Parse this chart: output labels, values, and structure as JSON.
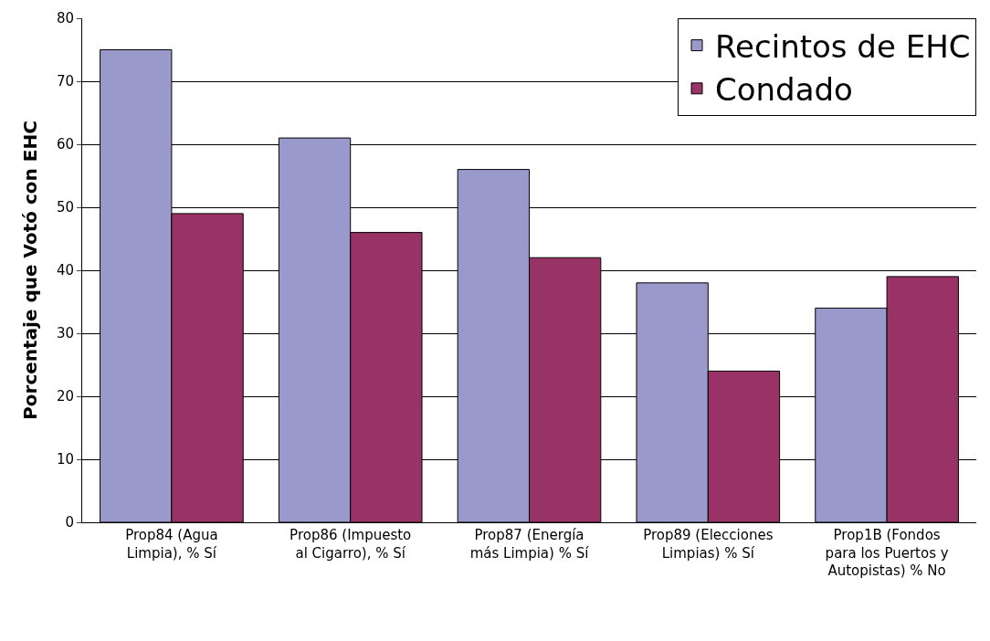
{
  "chart_data": {
    "type": "bar",
    "ylabel": "Porcentaje que Votó con EHC",
    "categories": [
      "Prop84 (Agua Limpia), % Sí",
      "Prop86 (Impuesto al Cigarro), % Sí",
      "Prop87 (Energía más Limpia) % Sí",
      "Prop89 (Elecciones Limpias) % Sí",
      "Prop1B (Fondos para los Puertos y Autopistas) % No"
    ],
    "series": [
      {
        "name": "Recintos de EHC",
        "color": "#9999cc",
        "values": [
          75,
          61,
          56,
          38,
          34
        ]
      },
      {
        "name": "Condado",
        "color": "#993366",
        "values": [
          49,
          46,
          42,
          24,
          39
        ]
      }
    ],
    "ylim": [
      0,
      80
    ],
    "yticks": [
      0,
      10,
      20,
      30,
      40,
      50,
      60,
      70,
      80
    ],
    "grid": "y",
    "legend": "top right"
  }
}
